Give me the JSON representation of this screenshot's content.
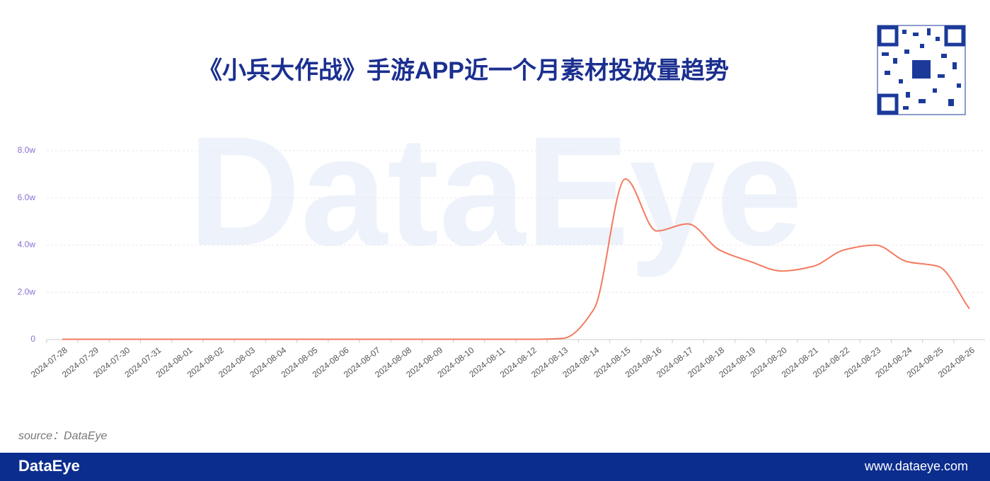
{
  "chart_data": {
    "type": "line",
    "title": "《小兵大作战》手游APP近一个月素材投放量趋势",
    "categories": [
      "2024-07-28",
      "2024-07-29",
      "2024-07-30",
      "2024-07-31",
      "2024-08-01",
      "2024-08-02",
      "2024-08-03",
      "2024-08-04",
      "2024-08-05",
      "2024-08-06",
      "2024-08-07",
      "2024-08-08",
      "2024-08-09",
      "2024-08-10",
      "2024-08-11",
      "2024-08-12",
      "2024-08-13",
      "2024-08-14",
      "2024-08-15",
      "2024-08-16",
      "2024-08-17",
      "2024-08-18",
      "2024-08-19",
      "2024-08-20",
      "2024-08-21",
      "2024-08-22",
      "2024-08-23",
      "2024-08-24",
      "2024-08-25",
      "2024-08-26"
    ],
    "values": [
      0.01,
      0.01,
      0.01,
      0.01,
      0.01,
      0.01,
      0.01,
      0.01,
      0.01,
      0.01,
      0.01,
      0.01,
      0.01,
      0.01,
      0.01,
      0.01,
      0.05,
      1.3,
      6.8,
      4.6,
      4.9,
      3.8,
      3.3,
      2.9,
      3.1,
      3.8,
      4.0,
      3.3,
      3.1,
      1.3
    ],
    "color": "#f47a5f",
    "ylim": [
      0,
      8
    ],
    "yticks": [
      0,
      {
        "value": 2,
        "label": "2.0w"
      },
      {
        "value": 4,
        "label": "4.0w"
      },
      {
        "value": 6,
        "label": "6.0w"
      },
      {
        "value": 8,
        "label": "8.0w"
      }
    ],
    "grid": true
  },
  "watermark": "DataEye",
  "source": "source：DataEye",
  "footer_logo": "DataEye",
  "footer_url": "www.dataeye.com"
}
